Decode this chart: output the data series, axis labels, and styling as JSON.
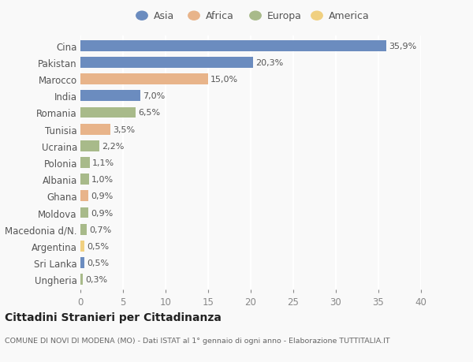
{
  "countries": [
    "Cina",
    "Pakistan",
    "Marocco",
    "India",
    "Romania",
    "Tunisia",
    "Ucraina",
    "Polonia",
    "Albania",
    "Ghana",
    "Moldova",
    "Macedonia d/N.",
    "Argentina",
    "Sri Lanka",
    "Ungheria"
  ],
  "values": [
    35.9,
    20.3,
    15.0,
    7.0,
    6.5,
    3.5,
    2.2,
    1.1,
    1.0,
    0.9,
    0.9,
    0.7,
    0.5,
    0.5,
    0.3
  ],
  "labels": [
    "35,9%",
    "20,3%",
    "15,0%",
    "7,0%",
    "6,5%",
    "3,5%",
    "2,2%",
    "1,1%",
    "1,0%",
    "0,9%",
    "0,9%",
    "0,7%",
    "0,5%",
    "0,5%",
    "0,3%"
  ],
  "colors": [
    "#6b8cbf",
    "#6b8cbf",
    "#e8b48a",
    "#6b8cbf",
    "#a8ba8a",
    "#e8b48a",
    "#a8ba8a",
    "#a8ba8a",
    "#a8ba8a",
    "#e8b48a",
    "#a8ba8a",
    "#a8ba8a",
    "#f0d080",
    "#6b8cbf",
    "#a8ba8a"
  ],
  "continents": [
    "Asia",
    "Africa",
    "Europa",
    "America"
  ],
  "legend_colors": [
    "#6b8cbf",
    "#e8b48a",
    "#a8ba8a",
    "#f0d080"
  ],
  "title": "Cittadini Stranieri per Cittadinanza",
  "subtitle": "COMUNE DI NOVI DI MODENA (MO) - Dati ISTAT al 1° gennaio di ogni anno - Elaborazione TUTTITALIA.IT",
  "xlim": [
    0,
    40
  ],
  "xticks": [
    0,
    5,
    10,
    15,
    20,
    25,
    30,
    35,
    40
  ],
  "background_color": "#f9f9f9",
  "grid_color": "#ffffff",
  "bar_height": 0.65,
  "label_fontsize": 8.0,
  "ytick_fontsize": 8.5,
  "xtick_fontsize": 8.5
}
